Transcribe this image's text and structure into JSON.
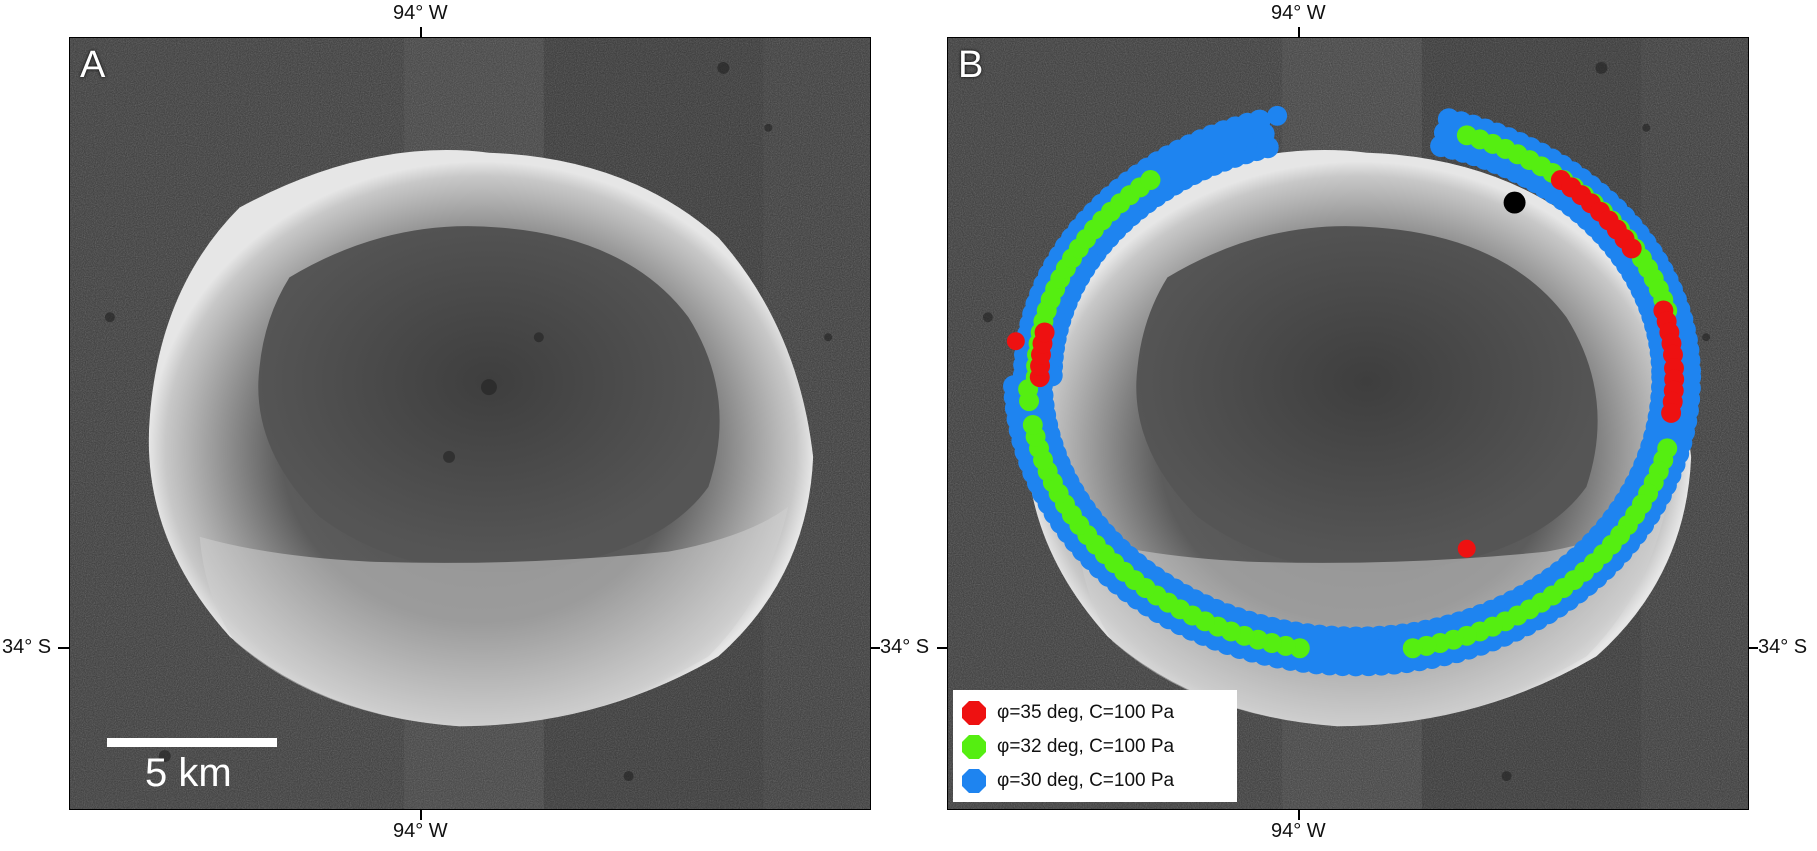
{
  "axes": {
    "top_label": "94° W",
    "bottom_label": "94° W",
    "left_label": "34° S",
    "right_label": "34° S"
  },
  "panels": [
    {
      "letter": "A"
    },
    {
      "letter": "B"
    }
  ],
  "scalebar": {
    "label": "5 km"
  },
  "legend": {
    "items": [
      {
        "label": "φ=35 deg, C=100 Pa",
        "color": "#ee1111"
      },
      {
        "label": "φ=32 deg, C=100 Pa",
        "color": "#55ee11"
      },
      {
        "label": "φ=30 deg, C=100 Pa",
        "color": "#1e84f0"
      }
    ]
  },
  "marker_colors": {
    "phi35": "#ee1111",
    "phi32": "#55ee11",
    "phi30": "#1e84f0",
    "point": "#000000"
  }
}
